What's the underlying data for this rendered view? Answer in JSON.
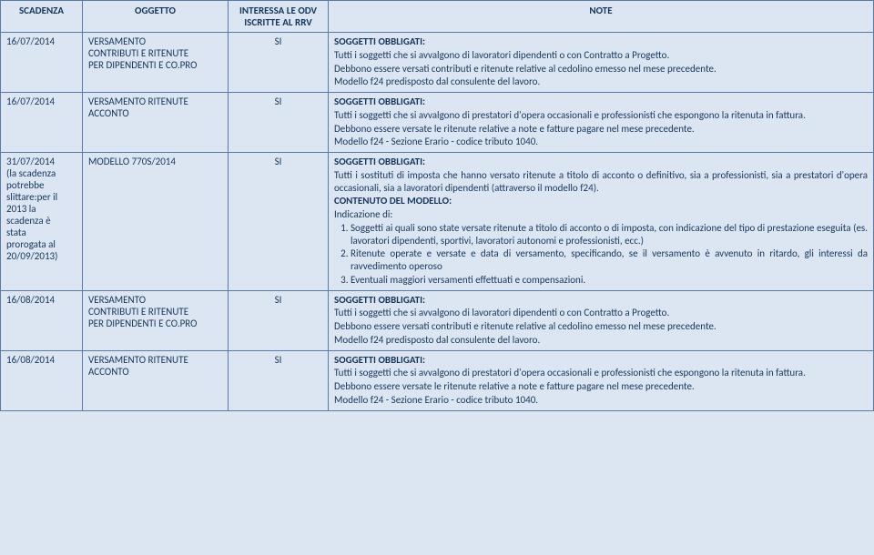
{
  "headers": {
    "scadenza": "SCADENZA",
    "oggetto": "OGGETTO",
    "odv_line1": "INTERESSA LE ODV",
    "odv_line2": "ISCRITTE AL RRV",
    "note": "NOTE"
  },
  "rows": [
    {
      "date": "16/07/2014",
      "obj_l1": "VERSAMENTO",
      "obj_l2": "CONTRIBUTI E RITENUTE",
      "obj_l3": "PER DIPENDENTI E CO.PRO",
      "odv": "SI",
      "n1": "SOGGETTI OBBLIGATI:",
      "n2": "Tutti i soggetti che si avvalgono di lavoratori dipendenti o con Contratto a Progetto.",
      "n3": "Debbono essere versati contributi e ritenute relative al cedolino emesso nel mese precedente.",
      "n4": "Modello f24 predisposto dal consulente del lavoro."
    },
    {
      "date": "16/07/2014",
      "obj_l1": "VERSAMENTO RITENUTE",
      "obj_l2": "ACCONTO",
      "odv": "SI",
      "n1": "SOGGETTI OBBLIGATI:",
      "n2": "Tutti i soggetti che si avvalgono di prestatori d'opera occasionali e professionisti che espongono la ritenuta in fattura.",
      "n3": "Debbono essere versate le ritenute relative a note e fatture pagare nel mese precedente.",
      "n4": "Modello f24  - Sezione Erario -  codice tributo 1040."
    },
    {
      "date_l1": "31/07/2014",
      "date_l2": "(la scadenza",
      "date_l3": "potrebbe",
      "date_l4": "slittare:per il",
      "date_l5": "2013 la",
      "date_l6": "scadenza è",
      "date_l7": "stata",
      "date_l8": "prorogata al",
      "date_l9": "20/09/2013)",
      "obj_l1": "MODELLO 770S/2014",
      "odv": "SI",
      "n1": "SOGGETTI OBBLIGATI:",
      "n2": "Tutti i sostituti di imposta che hanno versato ritenute a titolo di acconto o definitivo, sia a professionisti, sia a prestatori d'opera occasionali, sia a lavoratori dipendenti (attraverso il modello f24).",
      "n3": "CONTENUTO DEL MODELLO:",
      "n4": "Indicazione di:",
      "li1": "Soggetti ai quali sono state versate ritenute a titolo di acconto o di imposta, con indicazione del tipo di prestazione eseguita (es. lavoratori dipendenti, sportivi, lavoratori autonomi e professionisti, ecc.)",
      "li2": "Ritenute operate e versate e data di versamento, specificando, se il versamento è avvenuto in ritardo, gli interessi da ravvedimento operoso",
      "li3": "Eventuali maggiori versamenti effettuati e compensazioni."
    },
    {
      "date": "16/08/2014",
      "obj_l1": "VERSAMENTO",
      "obj_l2": "CONTRIBUTI E RITENUTE",
      "obj_l3": "PER DIPENDENTI E CO.PRO",
      "odv": "SI",
      "n1": "SOGGETTI OBBLIGATI:",
      "n2": "Tutti i soggetti che si avvalgono di lavoratori dipendenti o con Contratto a Progetto.",
      "n3": "Debbono essere versati contributi e ritenute relative al cedolino emesso nel mese precedente.",
      "n4": "Modello f24 predisposto dal consulente del lavoro."
    },
    {
      "date": "16/08/2014",
      "obj_l1": "VERSAMENTO RITENUTE",
      "obj_l2": "ACCONTO",
      "odv": "SI",
      "n1": "SOGGETTI OBBLIGATI:",
      "n2": "Tutti i soggetti che si avvalgono di prestatori d'opera occasionali e professionisti che espongono la ritenuta in fattura.",
      "n3": "Debbono essere versate le ritenute relative a note e fatture pagare nel mese precedente.",
      "n4": " Modello f24  - Sezione Erario -  codice tributo 1040."
    }
  ]
}
